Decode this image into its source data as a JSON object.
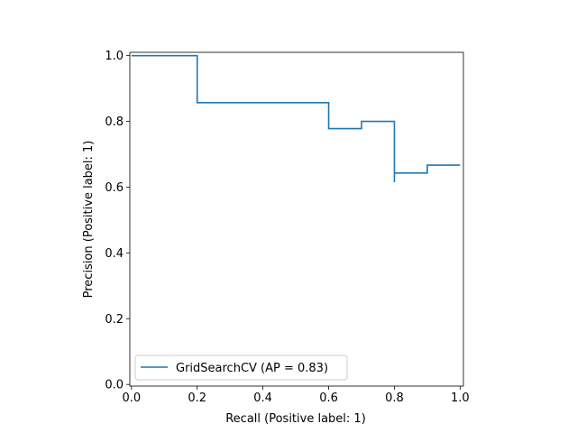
{
  "chart_data": {
    "type": "line",
    "drawstyle": "steps-post",
    "title": "",
    "xlabel": "Recall (Positive label: 1)",
    "ylabel": "Precision (Positive label: 1)",
    "xlim": [
      -0.005,
      1.01
    ],
    "ylim": [
      -0.005,
      1.01
    ],
    "xticks": [
      0.0,
      0.2,
      0.4,
      0.6,
      0.8,
      1.0
    ],
    "xtick_labels": [
      "0.0",
      "0.2",
      "0.4",
      "0.6",
      "0.8",
      "1.0"
    ],
    "yticks": [
      0.0,
      0.2,
      0.4,
      0.6,
      0.8,
      1.0
    ],
    "ytick_labels": [
      "0.0",
      "0.2",
      "0.4",
      "0.6",
      "0.8",
      "1.0"
    ],
    "grid": false,
    "legend_position": "lower-left",
    "series": [
      {
        "name": "GridSearchCV (AP = 0.83)",
        "color": "#1f77b4",
        "points": [
          {
            "x": 0.0,
            "y": 1.0
          },
          {
            "x": 0.2,
            "y": 1.0
          },
          {
            "x": 0.2,
            "y": 0.857
          },
          {
            "x": 0.6,
            "y": 0.857
          },
          {
            "x": 0.6,
            "y": 0.778
          },
          {
            "x": 0.7,
            "y": 0.778
          },
          {
            "x": 0.7,
            "y": 0.8
          },
          {
            "x": 0.8,
            "y": 0.8
          },
          {
            "x": 0.8,
            "y": 0.615
          },
          {
            "x": 0.8,
            "y": 0.643
          },
          {
            "x": 0.9,
            "y": 0.643
          },
          {
            "x": 0.9,
            "y": 0.667
          },
          {
            "x": 1.0,
            "y": 0.667
          }
        ]
      }
    ]
  }
}
